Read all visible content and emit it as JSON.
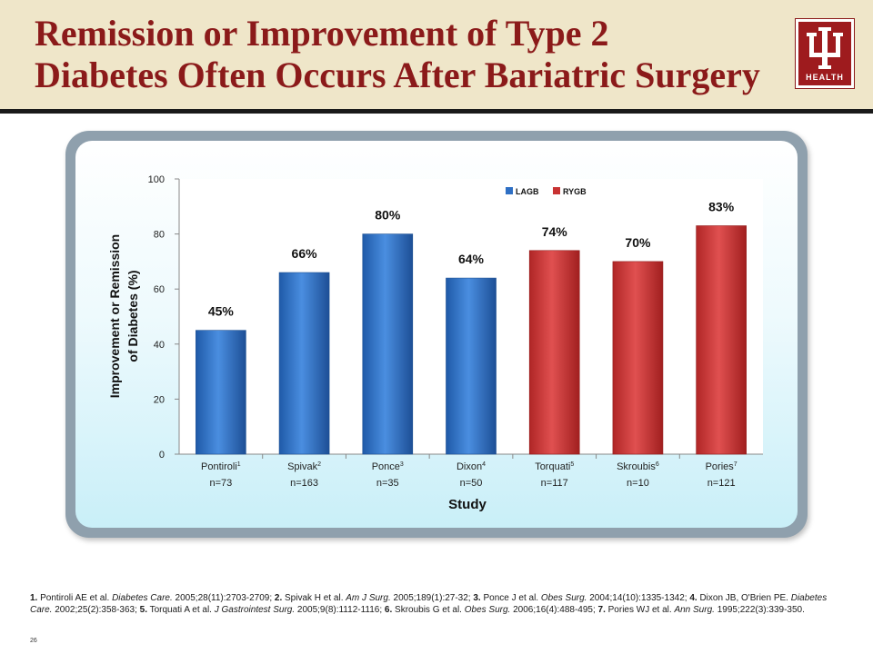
{
  "slide": {
    "title_line1": "Remission or Improvement of Type 2",
    "title_line2": "Diabetes Often Occurs After Bariatric Surgery",
    "logo_text": "HEALTH",
    "page_number": "26"
  },
  "colors": {
    "header_bg": "#efe6c9",
    "title": "#8b1a1a",
    "lagb": "#2e6fc4",
    "rygb": "#c83232"
  },
  "chart_data": {
    "type": "bar",
    "title": "",
    "xlabel": "Study",
    "ylabel_line1": "Improvement or Remission",
    "ylabel_line2": "of Diabetes (%)",
    "ylim": [
      0,
      100
    ],
    "yticks": [
      0,
      20,
      40,
      60,
      80,
      100
    ],
    "grid": false,
    "legend_position": "top",
    "legend": [
      {
        "name": "LAGB",
        "color": "#2e6fc4"
      },
      {
        "name": "RYGB",
        "color": "#c83232"
      }
    ],
    "categories": [
      {
        "name": "Pontiroli",
        "ref": "1",
        "n": "n=73",
        "group": "LAGB",
        "value": 45,
        "label": "45%"
      },
      {
        "name": "Spivak",
        "ref": "2",
        "n": "n=163",
        "group": "LAGB",
        "value": 66,
        "label": "66%"
      },
      {
        "name": "Ponce",
        "ref": "3",
        "n": "n=35",
        "group": "LAGB",
        "value": 80,
        "label": "80%"
      },
      {
        "name": "Dixon",
        "ref": "4",
        "n": "n=50",
        "group": "LAGB",
        "value": 64,
        "label": "64%"
      },
      {
        "name": "Torquati",
        "ref": "5",
        "n": "n=117",
        "group": "RYGB",
        "value": 74,
        "label": "74%"
      },
      {
        "name": "Skroubis",
        "ref": "6",
        "n": "n=10",
        "group": "RYGB",
        "value": 70,
        "label": "70%"
      },
      {
        "name": "Pories",
        "ref": "7",
        "n": "n=121",
        "group": "RYGB",
        "value": 83,
        "label": "83%"
      }
    ]
  },
  "footnote": {
    "refs": [
      {
        "num": "1.",
        "authors": "Pontiroli AE et al.",
        "journal": "Diabetes Care.",
        "cite": "2005;28(11):2703-2709;"
      },
      {
        "num": "2.",
        "authors": "Spivak H et al.",
        "journal": "Am J Surg.",
        "cite": "2005;189(1):27-32;"
      },
      {
        "num": "3.",
        "authors": "Ponce J et al.",
        "journal": "Obes Surg.",
        "cite": "2004;14(10):1335-1342;"
      },
      {
        "num": "4.",
        "authors": "Dixon JB, O'Brien PE.",
        "journal": "Diabetes Care.",
        "cite": "2002;25(2):358-363;"
      },
      {
        "num": "5.",
        "authors": "Torquati A et al.",
        "journal": "J Gastrointest Surg.",
        "cite": "2005;9(8):1112-1116;"
      },
      {
        "num": "6.",
        "authors": "Skroubis G et al.",
        "journal": "Obes Surg.",
        "cite": "2006;16(4):488-495;"
      },
      {
        "num": "7.",
        "authors": "Pories WJ et al.",
        "journal": "Ann Surg.",
        "cite": "1995;222(3):339-350."
      }
    ]
  }
}
